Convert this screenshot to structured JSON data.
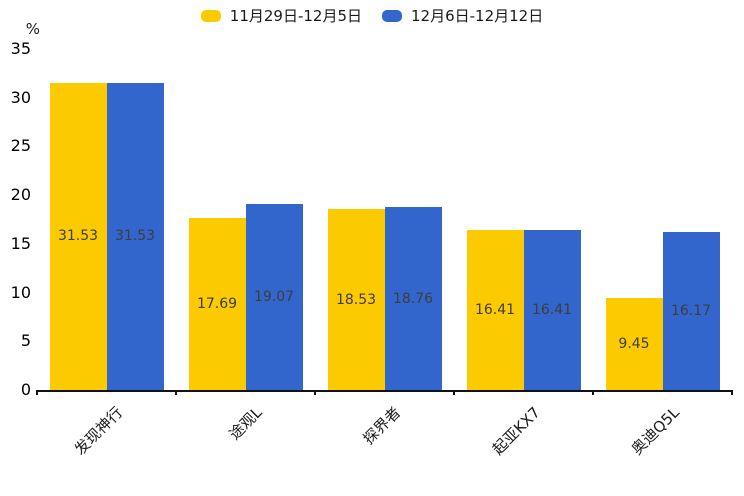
{
  "chart_data": {
    "type": "bar",
    "categories": [
      "发现神行",
      "途观L",
      "探界者",
      "起亚KX7",
      "奥迪Q5L"
    ],
    "series": [
      {
        "name": "11月29日-12月5日",
        "color": "#FCCA00",
        "values": [
          31.53,
          17.69,
          18.53,
          16.41,
          9.45
        ]
      },
      {
        "name": "12月6日-12月12日",
        "color": "#3366CC",
        "values": [
          31.53,
          19.07,
          18.76,
          16.41,
          16.17
        ]
      }
    ],
    "title": "",
    "xlabel": "",
    "ylabel": "%",
    "yticks": [
      0,
      5,
      10,
      15,
      20,
      25,
      30,
      35
    ],
    "ylim": [
      0,
      35
    ],
    "legend_position": "top",
    "grid": false,
    "value_labels": true,
    "value_label_color": "#3d3d3d",
    "axis_color": "#111111"
  }
}
